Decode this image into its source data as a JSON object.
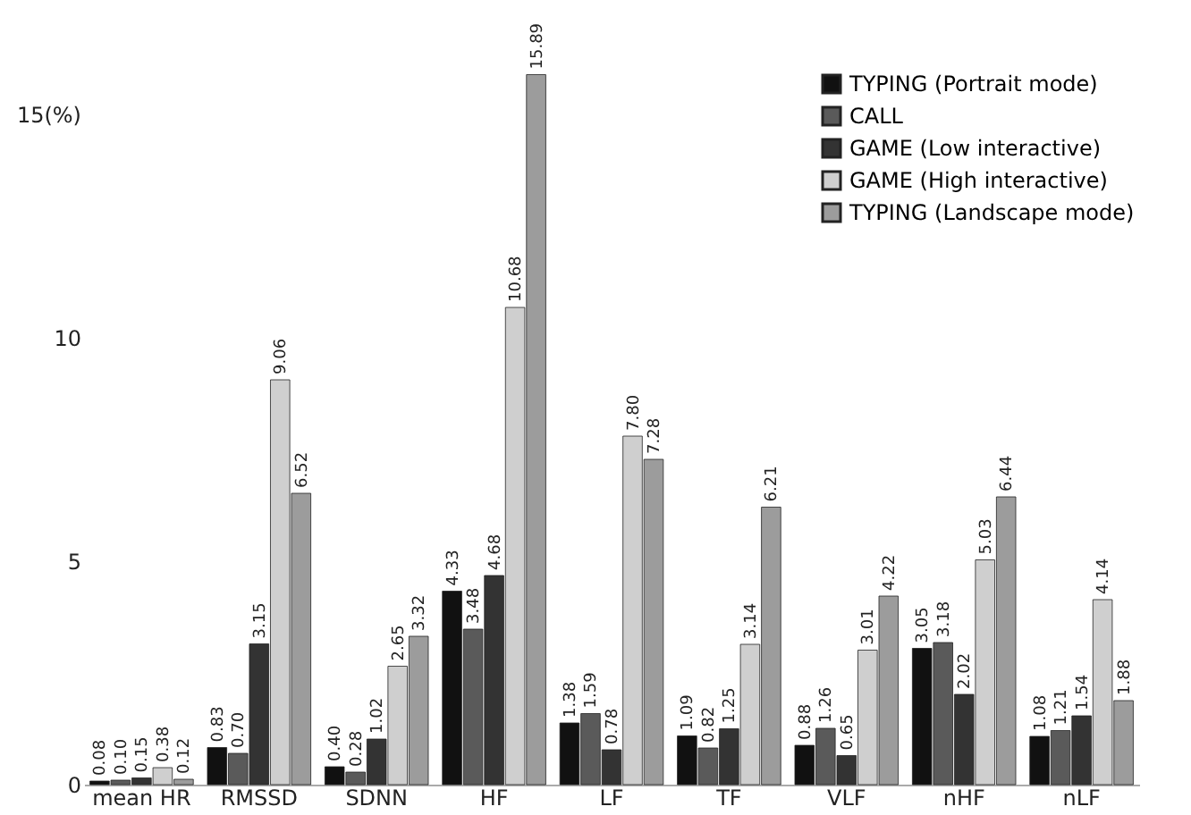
{
  "chart_data": {
    "type": "bar",
    "categories": [
      "mean HR",
      "RMSSD",
      "SDNN",
      "HF",
      "LF",
      "TF",
      "VLF",
      "nHF",
      "nLF"
    ],
    "series": [
      {
        "name": "TYPING (Portrait mode)",
        "color": "#111111",
        "values": [
          0.08,
          0.83,
          0.4,
          4.33,
          1.38,
          1.09,
          0.88,
          3.05,
          1.08
        ],
        "value_labels": [
          "0.08",
          "0.83",
          "0.40",
          "4.33",
          "1.38",
          "1.09",
          "0.88",
          "3.05",
          "1.08"
        ]
      },
      {
        "name": "CALL",
        "color": "#5a5a5a",
        "values": [
          0.1,
          0.7,
          0.28,
          3.48,
          1.59,
          0.82,
          1.26,
          3.18,
          1.21
        ],
        "value_labels": [
          "0.10",
          "0.70",
          "0.28",
          "3.48",
          "1.59",
          "0.82",
          "1.26",
          "3.18",
          "1.21"
        ]
      },
      {
        "name": "GAME (Low interactive)",
        "color": "#333333",
        "values": [
          0.15,
          3.15,
          1.02,
          4.68,
          0.78,
          1.25,
          0.65,
          2.02,
          1.54
        ],
        "value_labels": [
          "0.15",
          "3.15",
          "1.02",
          "4.68",
          "0.78",
          "1.25",
          "0.65",
          "2.02",
          "1.54"
        ]
      },
      {
        "name": "GAME (High interactive)",
        "color": "#cfcfcf",
        "values": [
          0.38,
          9.06,
          2.65,
          10.68,
          7.8,
          3.14,
          3.01,
          5.03,
          4.14
        ],
        "value_labels": [
          "0.38",
          "9.06",
          "2.65",
          "10.68",
          "7.80",
          "3.14",
          "3.01",
          "5.03",
          "4.14"
        ]
      },
      {
        "name": "TYPING (Landscape mode)",
        "color": "#9c9c9c",
        "values": [
          0.12,
          6.52,
          3.32,
          15.89,
          7.28,
          6.21,
          4.22,
          6.44,
          1.88
        ],
        "value_labels": [
          "0.12",
          "6.52",
          "3.32",
          "15.89",
          "7.28",
          "6.21",
          "4.22",
          "6.44",
          "1.88"
        ]
      }
    ],
    "ylim": [
      0,
      16
    ],
    "yticks": [
      0,
      5,
      10,
      {
        "value": 15,
        "label": "15(%)"
      }
    ],
    "grid": false,
    "legend": "top right"
  }
}
